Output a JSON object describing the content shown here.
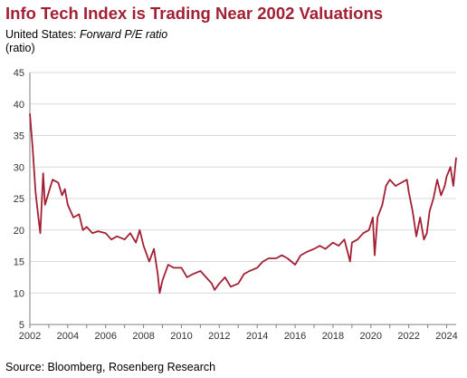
{
  "colors": {
    "title": "#a31f34",
    "line": "#a31f34",
    "gridline": "#d9d9d9",
    "axis": "#808080"
  },
  "header": {
    "title": "Info Tech Index is Trading Near 2002 Valuations",
    "subtitle_prefix": "United States: ",
    "subtitle_measure": "Forward P/E ratio",
    "unit": "(ratio)"
  },
  "footer": {
    "source": "Source: Bloomberg, Rosenberg Research"
  },
  "chart_data": {
    "type": "line",
    "title": "Info Tech Index is Trading Near 2002 Valuations",
    "subtitle": "United States: Forward P/E ratio",
    "ylabel": "(ratio)",
    "xlabel": "",
    "ylim": [
      5,
      45
    ],
    "xlim": [
      2002,
      2024.5
    ],
    "grid": "horizontal",
    "yticks": [
      5,
      10,
      15,
      20,
      25,
      30,
      35,
      40,
      45
    ],
    "xticks": [
      2002,
      2004,
      2006,
      2008,
      2010,
      2012,
      2014,
      2016,
      2018,
      2020,
      2022,
      2024
    ],
    "series": [
      {
        "x": [
          2002.0,
          2002.15,
          2002.3,
          2002.45,
          2002.55,
          2002.7,
          2002.8,
          2003.0,
          2003.2,
          2003.5,
          2003.7,
          2003.85,
          2004.0,
          2004.3,
          2004.6,
          2004.8,
          2005.0,
          2005.3,
          2005.6,
          2006.0,
          2006.3,
          2006.6,
          2007.0,
          2007.3,
          2007.6,
          2007.8,
          2008.0,
          2008.3,
          2008.55,
          2008.75,
          2008.85,
          2009.0,
          2009.3,
          2009.6,
          2010.0,
          2010.3,
          2010.6,
          2011.0,
          2011.3,
          2011.6,
          2011.75,
          2012.0,
          2012.3,
          2012.6,
          2013.0,
          2013.3,
          2013.6,
          2014.0,
          2014.3,
          2014.6,
          2015.0,
          2015.3,
          2015.6,
          2016.0,
          2016.3,
          2016.6,
          2017.0,
          2017.3,
          2017.6,
          2018.0,
          2018.3,
          2018.6,
          2018.9,
          2019.0,
          2019.3,
          2019.6,
          2019.9,
          2020.1,
          2020.2,
          2020.35,
          2020.6,
          2020.8,
          2021.0,
          2021.3,
          2021.6,
          2021.9,
          2022.0,
          2022.2,
          2022.4,
          2022.6,
          2022.8,
          2022.95,
          2023.1,
          2023.3,
          2023.5,
          2023.7,
          2023.9,
          2024.0,
          2024.2,
          2024.35,
          2024.5
        ],
        "values": [
          38.5,
          33.0,
          26.0,
          22.0,
          19.5,
          29.0,
          24.0,
          26.0,
          28.0,
          27.5,
          25.5,
          26.5,
          24.0,
          22.0,
          22.5,
          20.0,
          20.5,
          19.5,
          19.8,
          19.5,
          18.5,
          19.0,
          18.5,
          19.5,
          18.0,
          20.0,
          17.5,
          15.0,
          17.0,
          13.0,
          10.0,
          12.0,
          14.5,
          14.0,
          14.0,
          12.5,
          13.0,
          13.5,
          12.5,
          11.5,
          10.5,
          11.5,
          12.5,
          11.0,
          11.5,
          13.0,
          13.5,
          14.0,
          15.0,
          15.5,
          15.5,
          16.0,
          15.5,
          14.5,
          16.0,
          16.5,
          17.0,
          17.5,
          17.0,
          18.0,
          17.5,
          18.5,
          15.0,
          18.0,
          18.5,
          19.5,
          20.0,
          22.0,
          16.0,
          22.0,
          24.0,
          27.0,
          28.0,
          27.0,
          27.5,
          28.0,
          26.0,
          23.0,
          19.0,
          22.0,
          18.5,
          19.5,
          23.0,
          25.0,
          28.0,
          25.5,
          27.0,
          28.5,
          30.0,
          27.0,
          31.5
        ]
      }
    ]
  }
}
